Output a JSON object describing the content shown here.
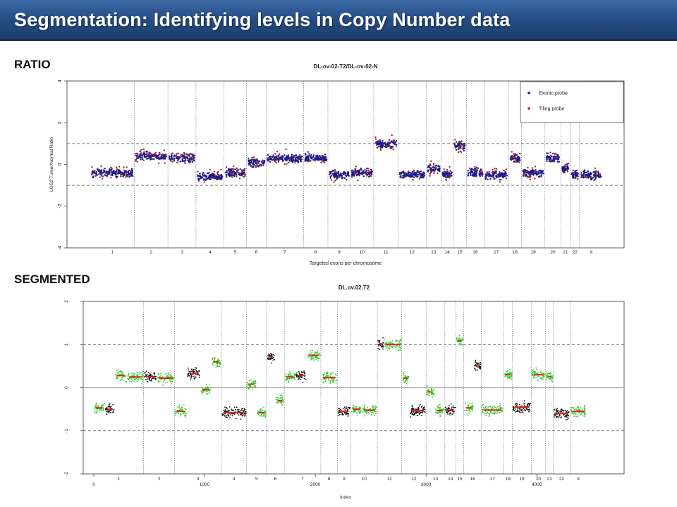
{
  "slide": {
    "title": "Segmentation: Identifying levels in Copy Number data",
    "label_ratio": "RATIO",
    "label_segmented": "SEGMENTED",
    "accent": "#274f86"
  },
  "chart_data": [
    {
      "type": "scatter",
      "title": "DL-ov-02-T2/DL-ov-02-N",
      "xlabel": "Targeted exons per chromosome",
      "ylabel": "LOG2 Tumor/Normal Ratio",
      "ylim": [
        -4,
        4
      ],
      "yticks": [
        "4",
        "2",
        "0",
        "-2",
        "-4"
      ],
      "ytick_values": [
        4,
        2,
        0,
        -2,
        -4
      ],
      "reference_lines": [
        1,
        -1
      ],
      "grid": false,
      "legend_position": "top-right",
      "chromosomes": [
        "1",
        "2",
        "3",
        "4",
        "5",
        "6",
        "7",
        "8",
        "9",
        "10",
        "11",
        "12",
        "13",
        "14",
        "15",
        "16",
        "17",
        "18",
        "19",
        "20",
        "21",
        "22",
        "X"
      ],
      "chromosome_levels": [
        -0.4,
        0.4,
        0.3,
        -0.6,
        -0.4,
        0.1,
        0.3,
        0.3,
        -0.5,
        -0.4,
        1.0,
        -0.5,
        -0.2,
        -0.5,
        0.9,
        -0.4,
        -0.5,
        0.3,
        -0.4,
        0.3,
        -0.2,
        -0.5,
        -0.5
      ],
      "series": [
        {
          "name": "Exonic probe",
          "color": "#1a1a8c"
        },
        {
          "name": "Tiling probe",
          "color": "#9c2a2a"
        }
      ]
    },
    {
      "type": "scatter",
      "title": "DL.ov.02.T2",
      "xlabel": "Index",
      "ylabel": "",
      "ylim": [
        -2,
        2
      ],
      "yticks": [
        "2",
        "1",
        "0",
        "-1",
        "-2"
      ],
      "ytick_values": [
        2,
        1,
        0,
        -1,
        -2
      ],
      "xticks": [
        "0",
        "1000",
        "2000",
        "3000",
        "4000"
      ],
      "xtick_values": [
        0,
        1000,
        2000,
        3000,
        4000
      ],
      "xlim": [
        0,
        4750
      ],
      "reference_lines": [
        1,
        -1
      ],
      "zero_line": 0,
      "grid": false,
      "chromosomes": [
        "1",
        "2",
        "3",
        "4",
        "5",
        "6",
        "7",
        "8",
        "9",
        "10",
        "11",
        "12",
        "13",
        "14",
        "15",
        "16",
        "17",
        "18",
        "19",
        "20",
        "21",
        "22",
        "X"
      ],
      "segments": [
        {
          "x0": 0,
          "x1": 100,
          "y": -0.47
        },
        {
          "x0": 100,
          "x1": 190,
          "y": -0.5
        },
        {
          "x0": 190,
          "x1": 300,
          "y": 0.28
        },
        {
          "x0": 300,
          "x1": 450,
          "y": 0.25
        },
        {
          "x0": 450,
          "x1": 570,
          "y": 0.25
        },
        {
          "x0": 570,
          "x1": 730,
          "y": 0.22
        },
        {
          "x0": 730,
          "x1": 840,
          "y": -0.55
        },
        {
          "x0": 840,
          "x1": 960,
          "y": 0.33
        },
        {
          "x0": 960,
          "x1": 1060,
          "y": -0.05
        },
        {
          "x0": 1060,
          "x1": 1150,
          "y": 0.6
        },
        {
          "x0": 1150,
          "x1": 1380,
          "y": -0.58
        },
        {
          "x0": 1380,
          "x1": 1470,
          "y": 0.08
        },
        {
          "x0": 1470,
          "x1": 1560,
          "y": -0.58
        },
        {
          "x0": 1560,
          "x1": 1640,
          "y": 0.72
        },
        {
          "x0": 1640,
          "x1": 1720,
          "y": -0.3
        },
        {
          "x0": 1720,
          "x1": 1820,
          "y": 0.25
        },
        {
          "x0": 1820,
          "x1": 1920,
          "y": 0.28
        },
        {
          "x0": 1920,
          "x1": 2050,
          "y": 0.75
        },
        {
          "x0": 2050,
          "x1": 2200,
          "y": 0.23
        },
        {
          "x0": 2200,
          "x1": 2320,
          "y": -0.55
        },
        {
          "x0": 2320,
          "x1": 2420,
          "y": -0.5
        },
        {
          "x0": 2420,
          "x1": 2560,
          "y": -0.52
        },
        {
          "x0": 2560,
          "x1": 2620,
          "y": 1.02
        },
        {
          "x0": 2620,
          "x1": 2780,
          "y": 1.0
        },
        {
          "x0": 2780,
          "x1": 2850,
          "y": 0.22
        },
        {
          "x0": 2850,
          "x1": 3000,
          "y": -0.53
        },
        {
          "x0": 3000,
          "x1": 3080,
          "y": -0.1
        },
        {
          "x0": 3080,
          "x1": 3170,
          "y": -0.53
        },
        {
          "x0": 3170,
          "x1": 3270,
          "y": -0.52
        },
        {
          "x0": 3270,
          "x1": 3340,
          "y": 1.08
        },
        {
          "x0": 3340,
          "x1": 3430,
          "y": -0.47
        },
        {
          "x0": 3430,
          "x1": 3500,
          "y": 0.5
        },
        {
          "x0": 3500,
          "x1": 3700,
          "y": -0.52
        },
        {
          "x0": 3700,
          "x1": 3780,
          "y": 0.3
        },
        {
          "x0": 3780,
          "x1": 3950,
          "y": -0.45
        },
        {
          "x0": 3950,
          "x1": 4080,
          "y": 0.3
        },
        {
          "x0": 4080,
          "x1": 4150,
          "y": 0.25
        },
        {
          "x0": 4150,
          "x1": 4300,
          "y": -0.6
        },
        {
          "x0": 4300,
          "x1": 4450,
          "y": -0.55
        }
      ],
      "series": [
        {
          "name": "",
          "color": "#33cc33"
        },
        {
          "name": "",
          "color": "#111111"
        }
      ],
      "segment_color": "#dd2211"
    }
  ]
}
